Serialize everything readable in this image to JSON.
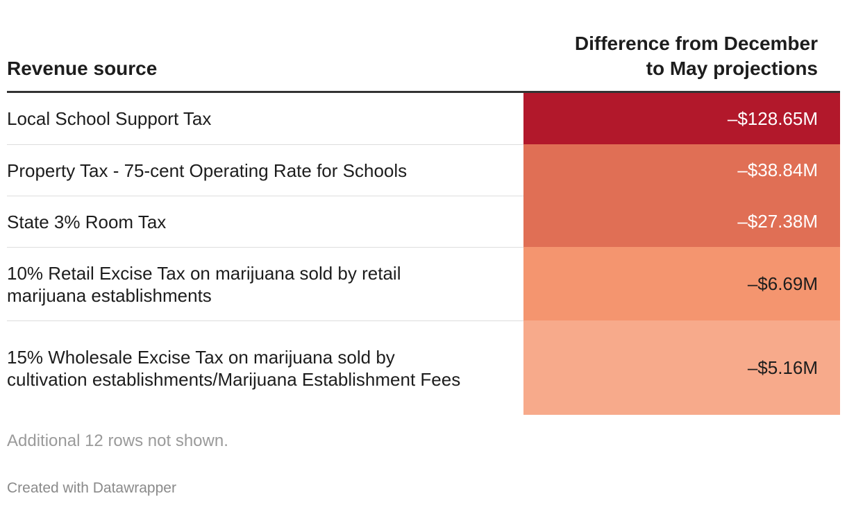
{
  "chart_data": {
    "type": "table",
    "columns": [
      "Revenue source",
      "Difference from December to May projections"
    ],
    "header": {
      "source": "Revenue source",
      "diff_line1": "Difference from December",
      "diff_line2": "to May projections"
    },
    "rows": [
      {
        "source": "Local School Support Tax",
        "value": -128.65,
        "label": "–$128.65M",
        "color": "#b2182b",
        "text_color": "#ffffff"
      },
      {
        "source": "Property Tax - 75-cent Operating Rate for Schools",
        "value": -38.84,
        "label": "–$38.84M",
        "color": "#e06f55",
        "text_color": "#ffffff"
      },
      {
        "source": "State 3% Room Tax",
        "value": -27.38,
        "label": "–$27.38M",
        "color": "#e06f55",
        "text_color": "#ffffff"
      },
      {
        "source": "10% Retail Excise Tax on marijuana sold by retail marijuana establishments",
        "value": -6.69,
        "label": "–$6.69M",
        "color": "#f4956f",
        "text_color": "#1d1d1d"
      },
      {
        "source": "15% Wholesale Excise Tax on marijuana sold by cultivation establishments/Marijuana Establishment Fees",
        "value": -5.16,
        "label": "–$5.16M",
        "color": "#f7aa8b",
        "text_color": "#1d1d1d"
      }
    ]
  },
  "footer": {
    "note": "Additional 12 rows not shown.",
    "credit": "Created with Datawrapper"
  }
}
